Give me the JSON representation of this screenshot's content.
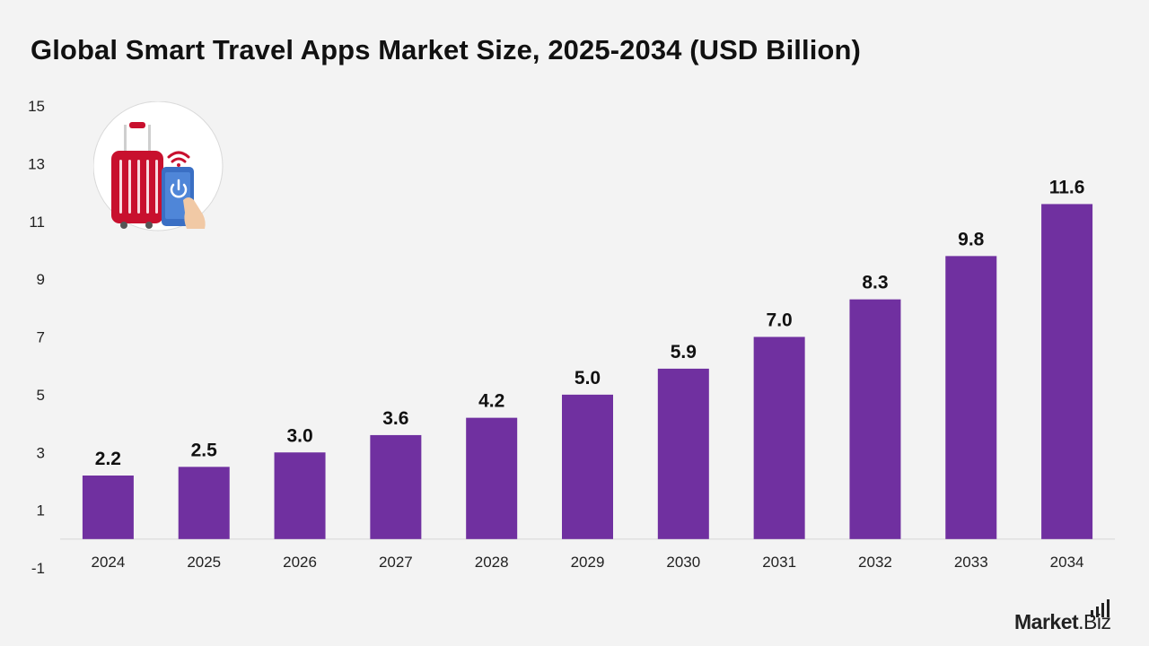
{
  "title": "Global Smart Travel Apps Market Size, 2025-2034 (USD Billion)",
  "brand": {
    "name": "Market",
    "suffix": ".Biz"
  },
  "colors": {
    "bar": "#7030a0",
    "background": "#f3f3f3",
    "text": "#111111",
    "suitcase": "#c8102e",
    "phone": "#3a6fc4"
  },
  "icons": [
    "suitcase-icon",
    "smartphone-icon",
    "wifi-icon",
    "power-icon",
    "hand-icon"
  ],
  "chart_data": {
    "type": "bar",
    "categories": [
      "2024",
      "2025",
      "2026",
      "2027",
      "2028",
      "2029",
      "2030",
      "2031",
      "2032",
      "2033",
      "2034"
    ],
    "values": [
      2.2,
      2.5,
      3.0,
      3.6,
      4.2,
      5.0,
      5.9,
      7.0,
      8.3,
      9.8,
      11.6
    ],
    "value_labels": [
      "2.2",
      "2.5",
      "3.0",
      "3.6",
      "4.2",
      "5.0",
      "5.9",
      "7.0",
      "8.3",
      "9.8",
      "11.6"
    ],
    "yticks": [
      -1,
      1,
      3,
      5,
      7,
      9,
      11,
      13,
      15
    ],
    "ylim": [
      -1,
      15
    ],
    "baseline": 0,
    "grid": false,
    "legend": "none",
    "xlabel": "",
    "ylabel": ""
  }
}
